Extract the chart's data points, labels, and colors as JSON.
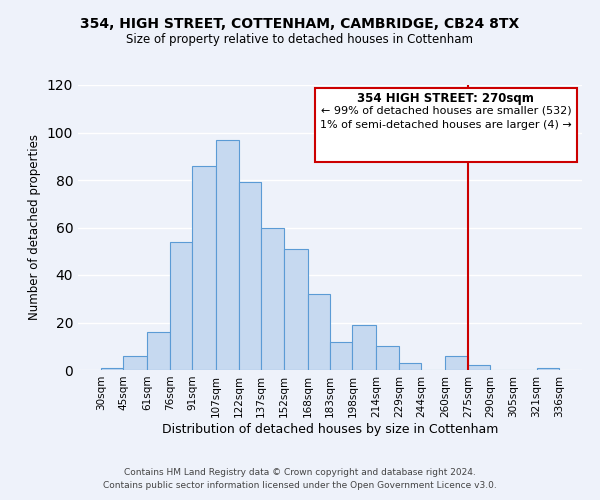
{
  "title_line1": "354, HIGH STREET, COTTENHAM, CAMBRIDGE, CB24 8TX",
  "title_line2": "Size of property relative to detached houses in Cottenham",
  "xlabel": "Distribution of detached houses by size in Cottenham",
  "ylabel": "Number of detached properties",
  "bar_edges": [
    30,
    45,
    61,
    76,
    91,
    107,
    122,
    137,
    152,
    168,
    183,
    198,
    214,
    229,
    244,
    260,
    275,
    290,
    305,
    321,
    336
  ],
  "bar_heights": [
    1,
    6,
    16,
    54,
    86,
    97,
    79,
    60,
    51,
    32,
    12,
    19,
    10,
    3,
    0,
    6,
    2,
    0,
    0,
    1
  ],
  "bar_color": "#c6d9f0",
  "bar_edgecolor": "#5b9bd5",
  "tick_labels": [
    "30sqm",
    "45sqm",
    "61sqm",
    "76sqm",
    "91sqm",
    "107sqm",
    "122sqm",
    "137sqm",
    "152sqm",
    "168sqm",
    "183sqm",
    "198sqm",
    "214sqm",
    "229sqm",
    "244sqm",
    "260sqm",
    "275sqm",
    "290sqm",
    "305sqm",
    "321sqm",
    "336sqm"
  ],
  "vline_x": 275,
  "vline_color": "#cc0000",
  "annotation_line1": "354 HIGH STREET: 270sqm",
  "annotation_line2": "← 99% of detached houses are smaller (532)",
  "annotation_line3": "1% of semi-detached houses are larger (4) →",
  "ylim": [
    0,
    120
  ],
  "yticks": [
    0,
    20,
    40,
    60,
    80,
    100,
    120
  ],
  "footer_line1": "Contains HM Land Registry data © Crown copyright and database right 2024.",
  "footer_line2": "Contains public sector information licensed under the Open Government Licence v3.0.",
  "background_color": "#eef2fa"
}
